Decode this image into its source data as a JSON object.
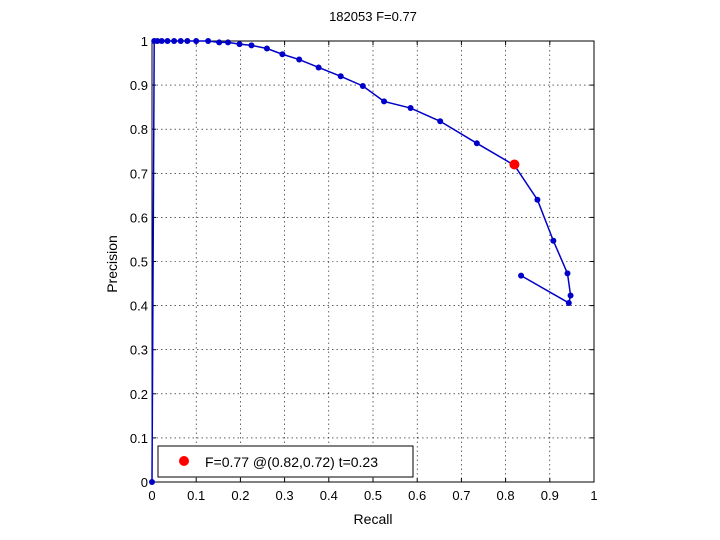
{
  "chart_data": {
    "type": "line",
    "title": "182053 F=0.77",
    "xlabel": "Recall",
    "ylabel": "Precision",
    "xlim": [
      0,
      1
    ],
    "ylim": [
      0,
      1
    ],
    "grid": true,
    "xticks": [
      "0",
      "0.1",
      "0.2",
      "0.3",
      "0.4",
      "0.5",
      "0.6",
      "0.7",
      "0.8",
      "0.9",
      "1"
    ],
    "yticks": [
      "0",
      "0.1",
      "0.2",
      "0.3",
      "0.4",
      "0.5",
      "0.6",
      "0.7",
      "0.8",
      "0.9",
      "1"
    ],
    "series": [
      {
        "color": "#0000c8",
        "points": [
          [
            0.0,
            0.0
          ],
          [
            0.005,
            1.0
          ],
          [
            0.012,
            1.0
          ],
          [
            0.022,
            1.0
          ],
          [
            0.035,
            1.0
          ],
          [
            0.05,
            1.0
          ],
          [
            0.065,
            1.0
          ],
          [
            0.08,
            1.0
          ],
          [
            0.1,
            1.0
          ],
          [
            0.127,
            1.0
          ],
          [
            0.152,
            0.997
          ],
          [
            0.172,
            0.997
          ],
          [
            0.198,
            0.993
          ],
          [
            0.225,
            0.99
          ],
          [
            0.26,
            0.983
          ],
          [
            0.295,
            0.97
          ],
          [
            0.333,
            0.958
          ],
          [
            0.377,
            0.94
          ],
          [
            0.427,
            0.92
          ],
          [
            0.477,
            0.898
          ],
          [
            0.525,
            0.863
          ],
          [
            0.585,
            0.848
          ],
          [
            0.652,
            0.818
          ],
          [
            0.735,
            0.768
          ],
          [
            0.82,
            0.718
          ],
          [
            0.872,
            0.64
          ],
          [
            0.908,
            0.547
          ],
          [
            0.94,
            0.473
          ],
          [
            0.947,
            0.423
          ],
          [
            0.943,
            0.406
          ],
          [
            0.835,
            0.468
          ]
        ]
      }
    ],
    "highlight": {
      "x": 0.82,
      "y": 0.72,
      "color": "#ff0000"
    },
    "legend": {
      "position": "bottom-left",
      "entries": [
        {
          "label": "F=0.77 @(0.82,0.72) t=0.23",
          "color": "#ff0000"
        }
      ]
    }
  }
}
